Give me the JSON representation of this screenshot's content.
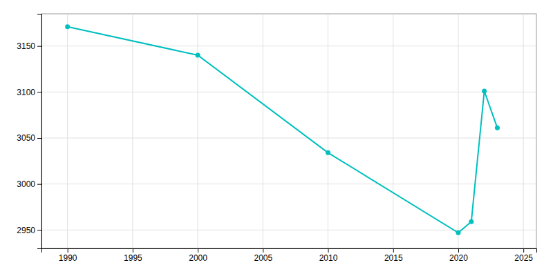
{
  "chart_data": {
    "type": "line",
    "x": [
      1990,
      2000,
      2010,
      2020,
      2021,
      2022,
      2023
    ],
    "values": [
      3171,
      3140,
      3034,
      2947,
      2959,
      3101,
      3061
    ],
    "color": "#00BFBF",
    "marker": "circle",
    "xlim": [
      1988,
      2026
    ],
    "ylim": [
      2930,
      3185
    ],
    "xticks": [
      1990,
      1995,
      2000,
      2005,
      2010,
      2015,
      2020,
      2025
    ],
    "yticks": [
      2950,
      3000,
      3050,
      3100,
      3150
    ],
    "grid": true
  }
}
